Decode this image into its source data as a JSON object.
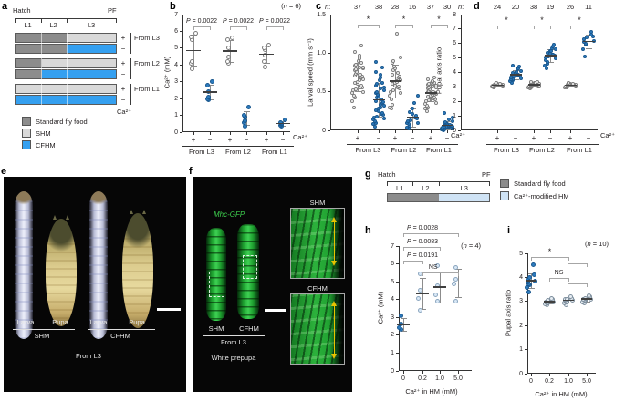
{
  "panel_letters": {
    "a": "a",
    "b": "b",
    "c": "c",
    "d": "d",
    "e": "e",
    "f": "f",
    "g": "g",
    "h": "h",
    "i": "i"
  },
  "colors": {
    "standard_food": "#8c8c8c",
    "shm": "#d9d9d9",
    "cfhm": "#35a0f0",
    "modified_hm": "#cfe3f5",
    "dot_blue": "#2e7cbf"
  },
  "panel_a": {
    "timeline": {
      "start": "Hatch",
      "end": "PF",
      "stages": [
        "L1",
        "L2",
        "L3"
      ]
    },
    "row_signs": [
      "+",
      "−",
      "+",
      "−",
      "+",
      "−"
    ],
    "group_labels": [
      "From L3",
      "From L2",
      "From L1"
    ],
    "ca_label": "Ca²⁺",
    "legend": [
      {
        "label": "Standard fly food",
        "color": "#8c8c8c"
      },
      {
        "label": "SHM",
        "color": "#d9d9d9"
      },
      {
        "label": "CFHM",
        "color": "#35a0f0"
      }
    ]
  },
  "panel_e": {
    "photo_labels": [
      "Larva",
      "Pupa",
      "Larva",
      "Pupa"
    ],
    "conditions": [
      "SHM",
      "CFHM"
    ],
    "caption": "From L3"
  },
  "panel_f": {
    "reporter": "Mhc-GFP",
    "conditions": [
      "SHM",
      "CFHM"
    ],
    "caption": "From L3",
    "stage_label": "White prepupa",
    "inset_labels": [
      "SHM",
      "CFHM"
    ]
  },
  "panel_g": {
    "timeline": {
      "start": "Hatch",
      "end": "PF",
      "stages": [
        "L1",
        "L2",
        "L3"
      ]
    },
    "legend": [
      {
        "label": "Standard fly food",
        "color": "#8c8c8c"
      },
      {
        "label": "Ca²⁺-modified HM",
        "color": "#cfe3f5"
      }
    ]
  },
  "chart_data": [
    {
      "id": "b",
      "type": "scatter",
      "n_label": "(n = 6)",
      "ylabel": "Ca²⁺ (mM)",
      "ylim": [
        0,
        7
      ],
      "yticks": [
        0,
        1,
        2,
        3,
        4,
        5,
        6,
        7
      ],
      "ytick_labels": [
        "0",
        "1",
        "2",
        "3",
        "4",
        "5",
        "6",
        "7"
      ],
      "x_signs": [
        "+",
        "−",
        "+",
        "−",
        "+",
        "−"
      ],
      "pair_labels": [
        "From L3",
        "From L2",
        "From L1"
      ],
      "axis_suffix": "Ca²⁺",
      "groups": [
        {
          "condition": "From L3 +Ca",
          "marker": "open-grey",
          "points": [
            3.8,
            4.1,
            4.2,
            5.5,
            5.7,
            5.9
          ]
        },
        {
          "condition": "From L3 -Ca",
          "marker": "filled-blue",
          "points": [
            1.95,
            2.0,
            2.1,
            2.4,
            2.8,
            3.0
          ]
        },
        {
          "condition": "From L2 +Ca",
          "marker": "open-grey",
          "points": [
            4.1,
            4.2,
            4.5,
            5.0,
            5.5,
            5.6
          ]
        },
        {
          "condition": "From L2 -Ca",
          "marker": "filled-blue",
          "points": [
            0.35,
            0.6,
            0.7,
            0.9,
            1.0,
            1.5
          ]
        },
        {
          "condition": "From L1 +Ca",
          "marker": "open-grey",
          "points": [
            3.9,
            4.2,
            4.6,
            4.9,
            5.0,
            5.2
          ]
        },
        {
          "condition": "From L1 -Ca",
          "marker": "filled-blue",
          "points": [
            0.35,
            0.4,
            0.45,
            0.5,
            0.6,
            0.75
          ]
        }
      ],
      "brackets": [
        {
          "g1": 0,
          "g2": 1,
          "y": 6.3,
          "label": "P = 0.0022"
        },
        {
          "g1": 2,
          "g2": 3,
          "y": 6.3,
          "label": "P = 0.0022"
        },
        {
          "g1": 4,
          "g2": 5,
          "y": 6.3,
          "label": "P = 0.0022"
        }
      ]
    },
    {
      "id": "c",
      "type": "scatter",
      "n_prefix": "n:",
      "n_values": [
        37,
        38,
        28,
        16,
        37,
        30
      ],
      "ylabel": "Larval speed (mm s⁻¹)",
      "ylim": [
        0,
        1.5
      ],
      "yticks": [
        0,
        0.5,
        1.0,
        1.5
      ],
      "ytick_labels": [
        "0",
        "0.5",
        "1.0",
        "1.5"
      ],
      "x_signs": [
        "+",
        "−",
        "+",
        "−",
        "+",
        "−"
      ],
      "pair_labels": [
        "From L3",
        "From L2",
        "From L1"
      ],
      "axis_suffix": "Ca²⁺",
      "groups": [
        {
          "condition": "From L3 +Ca",
          "marker": "open-grey",
          "points": [
            0.3,
            0.38,
            0.42,
            0.45,
            0.48,
            0.5,
            0.52,
            0.53,
            0.55,
            0.56,
            0.58,
            0.6,
            0.62,
            0.63,
            0.65,
            0.66,
            0.68,
            0.69,
            0.7,
            0.71,
            0.72,
            0.73,
            0.75,
            0.76,
            0.78,
            0.79,
            0.8,
            0.81,
            0.82,
            0.84,
            0.85,
            0.87,
            0.9,
            0.93,
            0.97,
            1.02,
            1.1
          ]
        },
        {
          "condition": "From L3 -Ca",
          "marker": "filled-blue",
          "points": [
            0.05,
            0.08,
            0.1,
            0.12,
            0.14,
            0.15,
            0.17,
            0.18,
            0.2,
            0.21,
            0.23,
            0.25,
            0.26,
            0.28,
            0.3,
            0.32,
            0.33,
            0.35,
            0.37,
            0.38,
            0.4,
            0.42,
            0.44,
            0.46,
            0.48,
            0.5,
            0.52,
            0.54,
            0.56,
            0.58,
            0.6,
            0.62,
            0.65,
            0.68,
            0.72,
            0.76,
            0.82,
            0.88
          ]
        },
        {
          "condition": "From L2 +Ca",
          "marker": "open-grey",
          "points": [
            0.28,
            0.3,
            0.33,
            0.4,
            0.45,
            0.48,
            0.5,
            0.52,
            0.54,
            0.55,
            0.57,
            0.58,
            0.6,
            0.62,
            0.63,
            0.65,
            0.67,
            0.68,
            0.7,
            0.72,
            0.75,
            0.78,
            0.8,
            0.83,
            0.87,
            0.9,
            0.95,
            1.25
          ]
        },
        {
          "condition": "From L2 -Ca",
          "marker": "filled-blue",
          "points": [
            0.02,
            0.04,
            0.06,
            0.08,
            0.09,
            0.1,
            0.12,
            0.13,
            0.15,
            0.17,
            0.19,
            0.21,
            0.24,
            0.28,
            0.35,
            0.45
          ]
        },
        {
          "condition": "From L1 +Ca",
          "marker": "open-grey",
          "points": [
            0.25,
            0.28,
            0.3,
            0.32,
            0.34,
            0.36,
            0.38,
            0.39,
            0.4,
            0.41,
            0.42,
            0.43,
            0.44,
            0.45,
            0.46,
            0.47,
            0.48,
            0.48,
            0.49,
            0.5,
            0.5,
            0.51,
            0.52,
            0.53,
            0.54,
            0.55,
            0.56,
            0.57,
            0.58,
            0.59,
            0.6,
            0.61,
            0.62,
            0.63,
            0.64,
            0.66,
            0.68
          ]
        },
        {
          "condition": "From L1 -Ca",
          "marker": "filled-blue",
          "points": [
            0.0,
            0.01,
            0.01,
            0.02,
            0.02,
            0.02,
            0.03,
            0.03,
            0.03,
            0.04,
            0.04,
            0.04,
            0.05,
            0.05,
            0.05,
            0.05,
            0.06,
            0.06,
            0.06,
            0.07,
            0.07,
            0.08,
            0.08,
            0.09,
            0.1,
            0.11,
            0.12,
            0.14,
            0.17,
            0.22
          ]
        }
      ],
      "brackets": [
        {
          "g1": 0,
          "g2": 1,
          "y": 1.37,
          "label": "*"
        },
        {
          "g1": 2,
          "g2": 3,
          "y": 1.37,
          "label": "*"
        },
        {
          "g1": 4,
          "g2": 5,
          "y": 1.37,
          "label": "*"
        }
      ]
    },
    {
      "id": "d",
      "type": "scatter",
      "n_prefix": "n:",
      "n_values": [
        24,
        20,
        38,
        19,
        26,
        11
      ],
      "ylabel": "Pupal axis ratio",
      "ylim": [
        0,
        8
      ],
      "yticks": [
        0,
        1,
        2,
        3,
        4,
        5,
        6,
        7,
        8
      ],
      "ytick_labels": [
        "0",
        "1",
        "2",
        "3",
        "4",
        "5",
        "6",
        "7",
        "8"
      ],
      "x_signs": [
        "+",
        "−",
        "+",
        "−",
        "+",
        "−"
      ],
      "pair_labels": [
        "From L3",
        "From L2",
        "From L1"
      ],
      "axis_suffix": "Ca²⁺",
      "groups": [
        {
          "condition": "From L3 +Ca",
          "marker": "open-grey",
          "points": [
            2.95,
            3.0,
            3.0,
            3.02,
            3.05,
            3.05,
            3.06,
            3.08,
            3.08,
            3.1,
            3.1,
            3.1,
            3.12,
            3.12,
            3.13,
            3.15,
            3.15,
            3.16,
            3.18,
            3.18,
            3.2,
            3.2,
            3.22,
            3.25
          ]
        },
        {
          "condition": "From L3 -Ca",
          "marker": "filled-blue",
          "points": [
            3.3,
            3.4,
            3.45,
            3.5,
            3.55,
            3.6,
            3.65,
            3.7,
            3.75,
            3.8,
            3.85,
            3.9,
            3.95,
            4.0,
            4.05,
            4.1,
            4.2,
            4.3,
            4.4,
            4.5
          ]
        },
        {
          "condition": "From L2 +Ca",
          "marker": "open-grey",
          "points": [
            2.9,
            2.95,
            2.98,
            3.0,
            3.0,
            3.02,
            3.04,
            3.05,
            3.05,
            3.06,
            3.08,
            3.08,
            3.1,
            3.1,
            3.1,
            3.1,
            3.12,
            3.12,
            3.13,
            3.14,
            3.15,
            3.15,
            3.16,
            3.16,
            3.18,
            3.18,
            3.2,
            3.2,
            3.2,
            3.22,
            3.22,
            3.24,
            3.25,
            3.26,
            3.28,
            3.3,
            3.32,
            3.35
          ]
        },
        {
          "condition": "From L2 -Ca",
          "marker": "filled-blue",
          "points": [
            4.3,
            4.45,
            4.6,
            4.75,
            4.85,
            4.95,
            5.05,
            5.1,
            5.15,
            5.2,
            5.25,
            5.3,
            5.35,
            5.45,
            5.5,
            5.6,
            5.7,
            5.8,
            5.9
          ]
        },
        {
          "condition": "From L1 +Ca",
          "marker": "open-grey",
          "points": [
            2.95,
            2.98,
            3.0,
            3.0,
            3.02,
            3.04,
            3.05,
            3.06,
            3.08,
            3.08,
            3.1,
            3.1,
            3.1,
            3.12,
            3.12,
            3.14,
            3.15,
            3.16,
            3.18,
            3.18,
            3.2,
            3.2,
            3.22,
            3.24,
            3.26,
            3.3
          ]
        },
        {
          "condition": "From L1 -Ca",
          "marker": "filled-blue",
          "points": [
            5.1,
            5.6,
            5.9,
            6.0,
            6.1,
            6.2,
            6.3,
            6.4,
            6.5,
            6.6,
            6.8
          ]
        }
      ],
      "brackets": [
        {
          "g1": 0,
          "g2": 1,
          "y": 7.25,
          "label": "*"
        },
        {
          "g1": 2,
          "g2": 3,
          "y": 7.25,
          "label": "*"
        },
        {
          "g1": 4,
          "g2": 5,
          "y": 7.25,
          "label": "*"
        }
      ]
    },
    {
      "id": "h",
      "type": "scatter",
      "n_label": "(n = 4)",
      "ylabel": "Ca²⁺ (mM)",
      "ylim": [
        0,
        7
      ],
      "yticks": [
        0,
        1,
        2,
        3,
        4,
        5,
        6,
        7
      ],
      "ytick_labels": [
        "0",
        "1",
        "2",
        "3",
        "4",
        "5",
        "6",
        "7"
      ],
      "xtick_labels": [
        "0",
        "0.2",
        "1.0",
        "5.0"
      ],
      "xlabel": "Ca²⁺ in HM (mM)",
      "groups": [
        {
          "condition": "0 mM",
          "marker": "filled-blue",
          "points": [
            2.3,
            2.4,
            2.65,
            3.1
          ]
        },
        {
          "condition": "0.2 mM",
          "marker": "open-blue",
          "points": [
            3.4,
            4.05,
            4.5,
            5.45
          ]
        },
        {
          "condition": "1.0 mM",
          "marker": "open-blue",
          "points": [
            3.9,
            4.25,
            4.75,
            5.9
          ]
        },
        {
          "condition": "5.0 mM",
          "marker": "open-blue",
          "points": [
            3.9,
            4.85,
            5.15,
            5.8
          ]
        }
      ],
      "brackets": [
        {
          "g1": 0,
          "g2": 3,
          "y": 7.7,
          "label": "P = 0.0028",
          "align": "left"
        },
        {
          "g1": 0,
          "g2": 2,
          "y": 6.95,
          "label": "P = 0.0083",
          "align": "left"
        },
        {
          "g1": 0,
          "g2": 1,
          "y": 6.2,
          "label": "P = 0.0191",
          "align": "left"
        },
        {
          "g1": 1,
          "g2": 3,
          "y": 5.5,
          "label": "NS",
          "lx": 0.3
        }
      ]
    },
    {
      "id": "i",
      "type": "scatter",
      "n_label": "(n = 10)",
      "ylabel": "Pupal axis ratio",
      "ylim": [
        0,
        5
      ],
      "yticks": [
        0,
        1,
        2,
        3,
        4,
        5
      ],
      "ytick_labels": [
        "0",
        "1",
        "2",
        "3",
        "4",
        "5"
      ],
      "xtick_labels": [
        "0",
        "0.2",
        "1.0",
        "5.0"
      ],
      "xlabel": "Ca²⁺ in HM (mM)",
      "groups": [
        {
          "condition": "0 mM",
          "marker": "filled-blue",
          "points": [
            3.4,
            3.6,
            3.7,
            3.75,
            3.8,
            3.85,
            3.9,
            4.0,
            4.1,
            4.55
          ]
        },
        {
          "condition": "0.2 mM",
          "marker": "open-faint",
          "points": [
            2.85,
            2.9,
            2.95,
            2.95,
            3.0,
            3.0,
            3.0,
            3.05,
            3.1,
            3.15
          ]
        },
        {
          "condition": "1.0 mM",
          "marker": "open-faint",
          "points": [
            2.85,
            2.95,
            3.0,
            3.0,
            3.05,
            3.05,
            3.1,
            3.1,
            3.15,
            3.2
          ]
        },
        {
          "condition": "5.0 mM",
          "marker": "open-faint",
          "points": [
            2.95,
            3.0,
            3.05,
            3.05,
            3.1,
            3.1,
            3.1,
            3.15,
            3.2,
            3.25
          ]
        }
      ],
      "brackets": [
        {
          "g1": 0,
          "g2": 2,
          "y": 4.85,
          "label": "*",
          "sub": {
            "g1": 2,
            "g2": 3,
            "y": 4.6
          }
        },
        {
          "g1": 1,
          "g2": 2,
          "y": 3.98,
          "label": "NS",
          "sub": {
            "g1": 2,
            "g2": 3,
            "y": 3.75
          }
        }
      ]
    }
  ]
}
